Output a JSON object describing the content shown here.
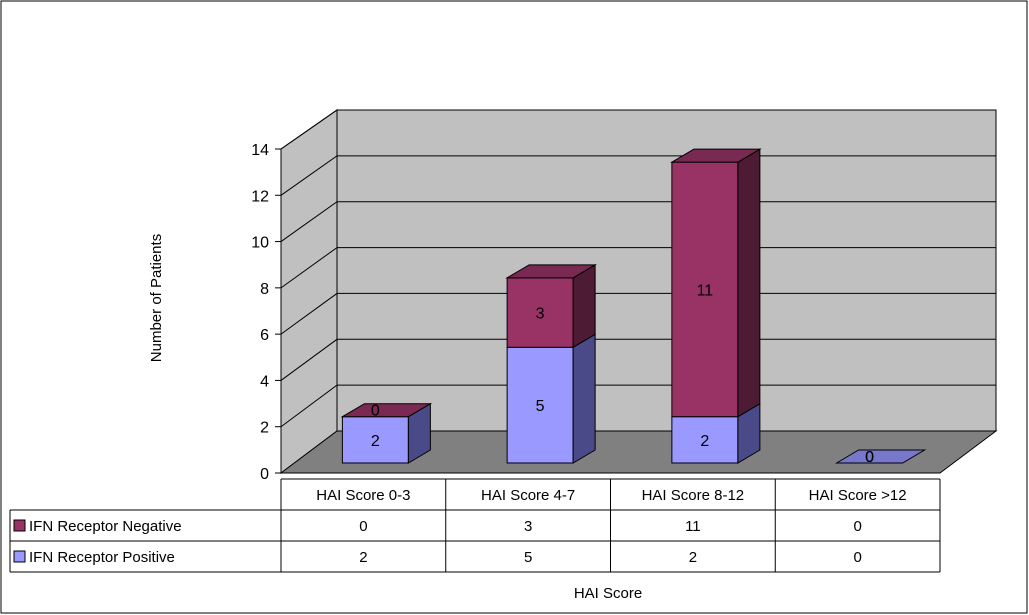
{
  "chart_data": {
    "type": "bar",
    "stacked": true,
    "three_d": true,
    "title": "",
    "xlabel": "HAI Score",
    "ylabel": "Number of Patients",
    "ylim": [
      0,
      14
    ],
    "yticks": [
      0,
      2,
      4,
      6,
      8,
      10,
      12,
      14
    ],
    "grid": true,
    "legend_placement": "data-table-left",
    "categories": [
      "HAI Score 0-3",
      "HAI Score 4-7",
      "HAI Score 8-12",
      "HAI Score >12"
    ],
    "series": [
      {
        "name": "IFN Receptor Positive",
        "values": [
          2,
          5,
          2,
          0
        ],
        "color": "#9999ff",
        "side_color": "#4a4a88",
        "top_color": "#7777cc"
      },
      {
        "name": "IFN Receptor Negative",
        "values": [
          0,
          3,
          11,
          0
        ],
        "color": "#993366",
        "side_color": "#4d1b34",
        "top_color": "#7a2a52"
      }
    ],
    "table_row_order": [
      1,
      0
    ],
    "wall_color": "#c0c0c0",
    "floor_color": "#808080"
  }
}
